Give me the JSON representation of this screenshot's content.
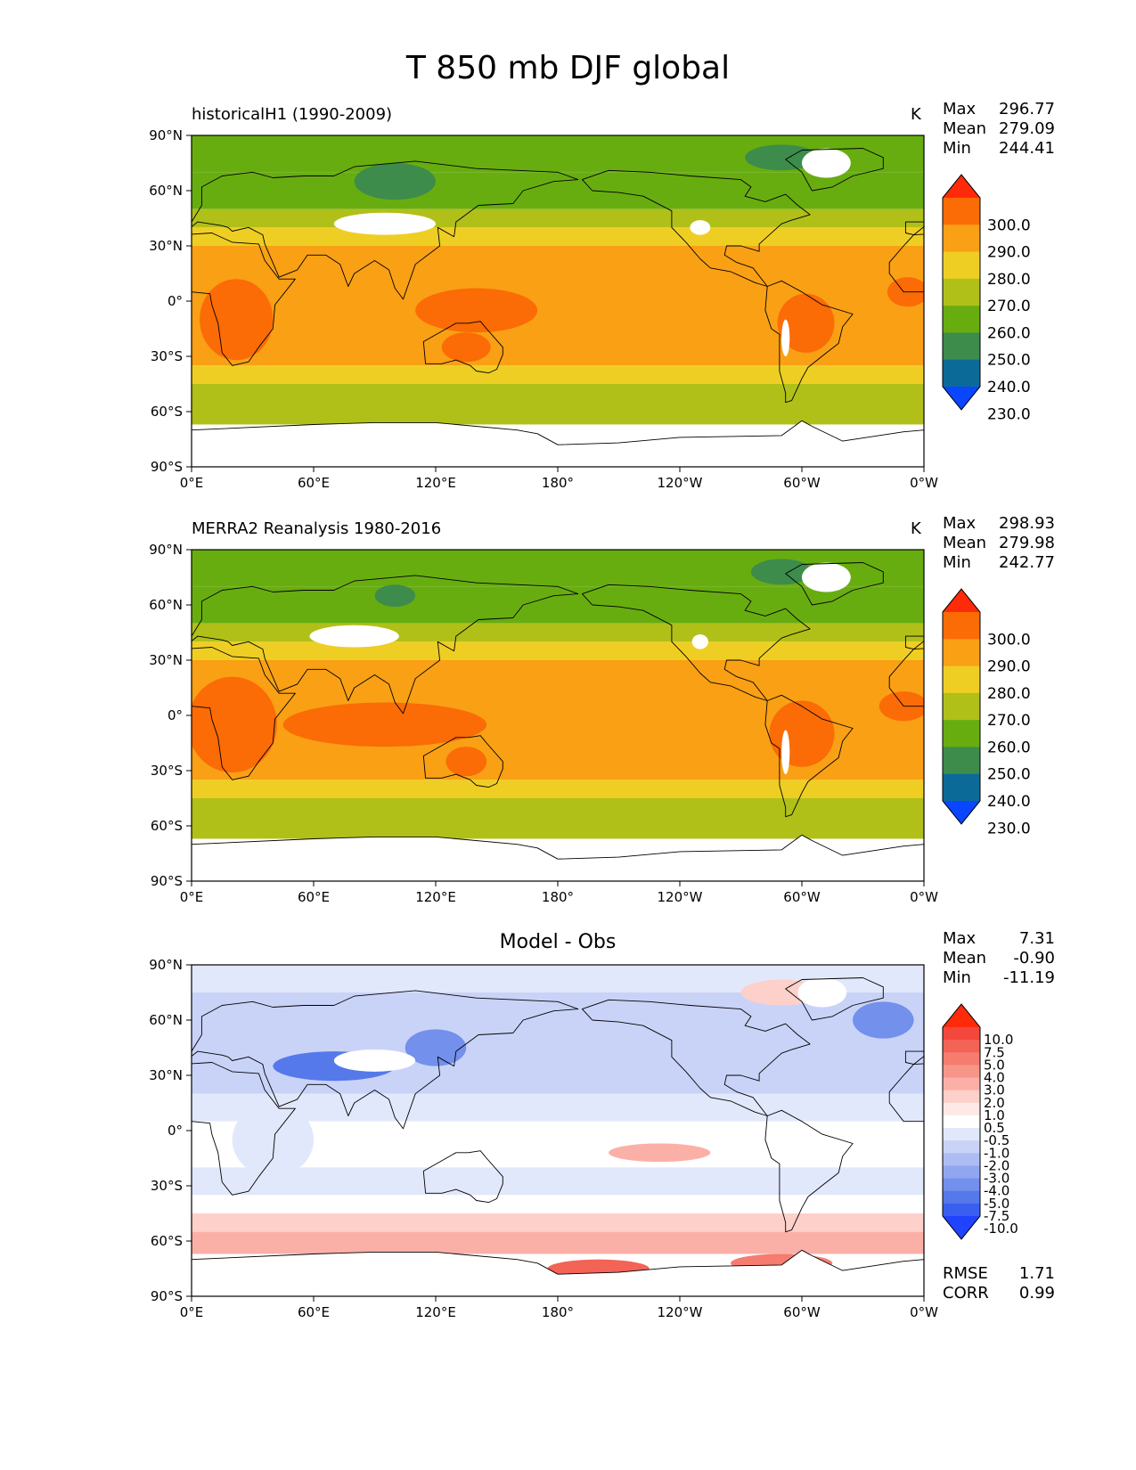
{
  "figure_title": "T 850 mb DJF global",
  "lon_ticks": [
    "0°E",
    "60°E",
    "120°E",
    "180°",
    "120°W",
    "60°W",
    "0°W"
  ],
  "lat_ticks": [
    "90°N",
    "60°N",
    "30°N",
    "0°",
    "30°S",
    "60°S",
    "90°S"
  ],
  "panels": [
    {
      "title": "historicalH1 (1990-2009)",
      "units": "K",
      "stats": [
        {
          "label": "Max",
          "value": "296.77"
        },
        {
          "label": "Mean",
          "value": "279.09"
        },
        {
          "label": "Min",
          "value": "244.41"
        }
      ],
      "colorbar": {
        "labels": [
          "300.0",
          "290.0",
          "280.0",
          "270.0",
          "260.0",
          "250.0",
          "240.0",
          "230.0"
        ],
        "colors": [
          "#ff2a0a",
          "#fb6b06",
          "#f9a014",
          "#efce24",
          "#b0c019",
          "#68ad10",
          "#3d8c4c",
          "#0c6a99",
          "#0a46ff"
        ]
      },
      "bands": [
        {
          "lat_top": 90,
          "lat_bot": 70,
          "color": "#68ad10"
        },
        {
          "lat_top": 70,
          "lat_bot": 50,
          "color": "#68ad10"
        },
        {
          "lat_top": 50,
          "lat_bot": 40,
          "color": "#b0c019"
        },
        {
          "lat_top": 40,
          "lat_bot": 30,
          "color": "#efce24"
        },
        {
          "lat_top": 30,
          "lat_bot": -35,
          "color": "#f9a014"
        },
        {
          "lat_top": -35,
          "lat_bot": -45,
          "color": "#efce24"
        },
        {
          "lat_top": -45,
          "lat_bot": -67,
          "color": "#b0c019"
        },
        {
          "lat_top": -67,
          "lat_bot": -90,
          "color": "#ffffff"
        }
      ]
    },
    {
      "title": "MERRA2 Reanalysis 1980-2016",
      "units": "K",
      "stats": [
        {
          "label": "Max",
          "value": "298.93"
        },
        {
          "label": "Mean",
          "value": "279.98"
        },
        {
          "label": "Min",
          "value": "242.77"
        }
      ],
      "colorbar": {
        "labels": [
          "300.0",
          "290.0",
          "280.0",
          "270.0",
          "260.0",
          "250.0",
          "240.0",
          "230.0"
        ],
        "colors": [
          "#ff2a0a",
          "#fb6b06",
          "#f9a014",
          "#efce24",
          "#b0c019",
          "#68ad10",
          "#3d8c4c",
          "#0c6a99",
          "#0a46ff"
        ]
      },
      "bands": [
        {
          "lat_top": 90,
          "lat_bot": 70,
          "color": "#68ad10"
        },
        {
          "lat_top": 70,
          "lat_bot": 50,
          "color": "#68ad10"
        },
        {
          "lat_top": 50,
          "lat_bot": 40,
          "color": "#b0c019"
        },
        {
          "lat_top": 40,
          "lat_bot": 30,
          "color": "#efce24"
        },
        {
          "lat_top": 30,
          "lat_bot": -35,
          "color": "#f9a014"
        },
        {
          "lat_top": -35,
          "lat_bot": -45,
          "color": "#efce24"
        },
        {
          "lat_top": -45,
          "lat_bot": -67,
          "color": "#b0c019"
        },
        {
          "lat_top": -67,
          "lat_bot": -90,
          "color": "#ffffff"
        }
      ]
    },
    {
      "title": "Model - Obs",
      "units": "",
      "stats": [
        {
          "label": "Max",
          "value": "7.31"
        },
        {
          "label": "Mean",
          "value": "-0.90"
        },
        {
          "label": "Min",
          "value": "-11.19"
        }
      ],
      "colorbar": {
        "labels": [
          "10.0",
          "7.5",
          "5.0",
          "4.0",
          "3.0",
          "2.0",
          "1.0",
          "0.5",
          "-0.5",
          "-1.0",
          "-2.0",
          "-3.0",
          "-4.0",
          "-5.0",
          "-7.5",
          "-10.0"
        ],
        "colors": [
          "#ff2a0a",
          "#f4473d",
          "#f36356",
          "#f57c6f",
          "#f89589",
          "#fbb0a7",
          "#fdd0ca",
          "#ffe9e6",
          "#ffffff",
          "#e2e8fb",
          "#c9d3f8",
          "#adbdf3",
          "#90a7ef",
          "#7290ec",
          "#5579ea",
          "#3a5ff0",
          "#1f43ff"
        ]
      },
      "bands": [
        {
          "lat_top": 90,
          "lat_bot": 75,
          "color": "#e2e8fb"
        },
        {
          "lat_top": 75,
          "lat_bot": 20,
          "color": "#c9d3f8"
        },
        {
          "lat_top": 20,
          "lat_bot": 5,
          "color": "#e2e8fb"
        },
        {
          "lat_top": 5,
          "lat_bot": -20,
          "color": "#ffffff"
        },
        {
          "lat_top": -20,
          "lat_bot": -35,
          "color": "#e2e8fb"
        },
        {
          "lat_top": -35,
          "lat_bot": -45,
          "color": "#ffffff"
        },
        {
          "lat_top": -45,
          "lat_bot": -55,
          "color": "#fdd0ca"
        },
        {
          "lat_top": -55,
          "lat_bot": -67,
          "color": "#fbb0a7"
        },
        {
          "lat_top": -67,
          "lat_bot": -90,
          "color": "#ffffff"
        }
      ],
      "footer_stats": [
        {
          "label": "RMSE",
          "value": "1.71"
        },
        {
          "label": "CORR",
          "value": "0.99"
        }
      ]
    }
  ]
}
